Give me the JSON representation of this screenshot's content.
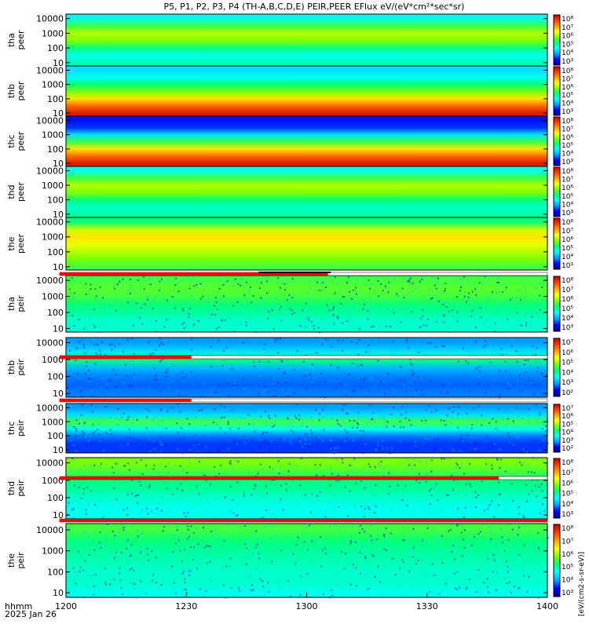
{
  "chart_data": {
    "type": "heatmap",
    "title": "P5, P1, P2, P3, P4 (TH-A,B,C,D,E) PEIR,PEER EFlux eV/(eV*cm²*sec*sr)",
    "x_label_top": "hhmm",
    "x_label_bottom": "2025 Jan 26",
    "x_ticks": [
      "1200",
      "1230",
      "1300",
      "1330",
      "1400"
    ],
    "x_range": [
      "12:00",
      "14:00"
    ],
    "y_scale": "log",
    "y_ticks": [
      "10",
      "100",
      "1000",
      "10000"
    ],
    "y_range": [
      6,
      20000
    ],
    "colorbar_label": "[eV/(cm2-s-sr-eV)]",
    "panels": [
      {
        "id": "tha-peer",
        "label1": "tha",
        "label2": "peer",
        "kind": "electron",
        "cb_ticks": [
          "10⁸",
          "10⁷",
          "10⁶",
          "10⁵",
          "10⁴",
          "10³"
        ],
        "bands": [
          [
            10,
            0.4
          ],
          [
            30,
            0.35
          ],
          [
            100,
            0.45
          ],
          [
            300,
            0.55
          ],
          [
            1000,
            0.6
          ],
          [
            3000,
            0.5
          ],
          [
            10000,
            0.35
          ]
        ]
      },
      {
        "id": "thb-peer",
        "label1": "thb",
        "label2": "peer",
        "kind": "electron",
        "cb_ticks": [
          "10⁸",
          "10⁷",
          "10⁶",
          "10⁵",
          "10⁴",
          "10³"
        ],
        "bands": [
          [
            10,
            0.95
          ],
          [
            30,
            0.85
          ],
          [
            100,
            0.7
          ],
          [
            300,
            0.55
          ],
          [
            1000,
            0.45
          ],
          [
            3000,
            0.35
          ],
          [
            10000,
            0.3
          ]
        ]
      },
      {
        "id": "thc-peer",
        "label1": "thc",
        "label2": "peer",
        "kind": "electron",
        "cb_ticks": [
          "10⁸",
          "10⁷",
          "10⁶",
          "10⁵",
          "10⁴",
          "10³"
        ],
        "bands": [
          [
            10,
            0.95
          ],
          [
            30,
            0.85
          ],
          [
            100,
            0.7
          ],
          [
            300,
            0.5
          ],
          [
            1000,
            0.3
          ],
          [
            3000,
            0.15
          ],
          [
            10000,
            0.12
          ]
        ]
      },
      {
        "id": "thd-peer",
        "label1": "thd",
        "label2": "peer",
        "kind": "electron",
        "cb_ticks": [
          "10⁸",
          "10⁷",
          "10⁶",
          "10⁵",
          "10⁴",
          "10³"
        ],
        "bands": [
          [
            10,
            0.42
          ],
          [
            30,
            0.38
          ],
          [
            100,
            0.45
          ],
          [
            300,
            0.55
          ],
          [
            1000,
            0.6
          ],
          [
            3000,
            0.5
          ],
          [
            10000,
            0.35
          ]
        ]
      },
      {
        "id": "the-peer",
        "label1": "the",
        "label2": "peer",
        "kind": "electron",
        "cb_ticks": [
          "10⁸",
          "10⁷",
          "10⁶",
          "10⁵",
          "10⁴",
          "10³"
        ],
        "bands": [
          [
            10,
            0.5
          ],
          [
            30,
            0.55
          ],
          [
            100,
            0.6
          ],
          [
            300,
            0.65
          ],
          [
            1000,
            0.7
          ],
          [
            3000,
            0.62
          ],
          [
            10000,
            0.45
          ]
        ]
      },
      {
        "id": "tha-peir",
        "label1": "tha",
        "label2": "peir",
        "kind": "ion",
        "cb_ticks": [
          "10⁸",
          "10⁷",
          "10⁶",
          "10⁵",
          "10⁴",
          "10³"
        ],
        "bands": [
          [
            10,
            0.38
          ],
          [
            30,
            0.38
          ],
          [
            100,
            0.42
          ],
          [
            300,
            0.45
          ],
          [
            1000,
            0.5
          ],
          [
            3000,
            0.52
          ],
          [
            10000,
            0.5
          ]
        ]
      },
      {
        "id": "thb-peir",
        "label1": "thb",
        "label2": "peir",
        "kind": "ion",
        "cb_ticks": [
          "10⁷",
          "10⁶",
          "10⁵",
          "10⁴",
          "10³",
          "10²"
        ],
        "bands": [
          [
            10,
            0.2
          ],
          [
            30,
            0.18
          ],
          [
            100,
            0.2
          ],
          [
            300,
            0.25
          ],
          [
            1000,
            0.45
          ],
          [
            3000,
            0.3
          ],
          [
            10000,
            0.22
          ]
        ]
      },
      {
        "id": "thc-peir",
        "label1": "thc",
        "label2": "peir",
        "kind": "ion",
        "cb_ticks": [
          "10⁷",
          "10⁶",
          "10⁵",
          "10⁴",
          "10³",
          "10²"
        ],
        "bands": [
          [
            10,
            0.15
          ],
          [
            30,
            0.15
          ],
          [
            100,
            0.2
          ],
          [
            300,
            0.35
          ],
          [
            1000,
            0.5
          ],
          [
            3000,
            0.3
          ],
          [
            10000,
            0.22
          ]
        ]
      },
      {
        "id": "thd-peir",
        "label1": "thd",
        "label2": "peir",
        "kind": "ion",
        "cb_ticks": [
          "10⁸",
          "10⁷",
          "10⁶",
          "10⁵",
          "10⁴",
          "10³"
        ],
        "bands": [
          [
            10,
            0.35
          ],
          [
            30,
            0.35
          ],
          [
            100,
            0.38
          ],
          [
            300,
            0.42
          ],
          [
            1000,
            0.45
          ],
          [
            3000,
            0.5
          ],
          [
            10000,
            0.55
          ]
        ]
      },
      {
        "id": "the-peir",
        "label1": "the",
        "label2": "peir",
        "kind": "ion",
        "cb_ticks": [
          "10⁸",
          "10⁷",
          "10⁶",
          "10⁵",
          "10⁴",
          "10³"
        ],
        "bands": [
          [
            10,
            0.35
          ],
          [
            30,
            0.38
          ],
          [
            100,
            0.38
          ],
          [
            300,
            0.4
          ],
          [
            1000,
            0.42
          ],
          [
            3000,
            0.45
          ],
          [
            10000,
            0.5
          ]
        ]
      }
    ],
    "colors": {
      "background": "#ffffff",
      "axis": "#000000",
      "mode_bar_red": "#ff0000",
      "mode_bar_black": "#000000",
      "colormap": [
        "#000080",
        "#0000ff",
        "#00a0ff",
        "#00ffff",
        "#00ff80",
        "#80ff00",
        "#ffff00",
        "#ffa000",
        "#ff4000",
        "#c00000"
      ]
    }
  }
}
